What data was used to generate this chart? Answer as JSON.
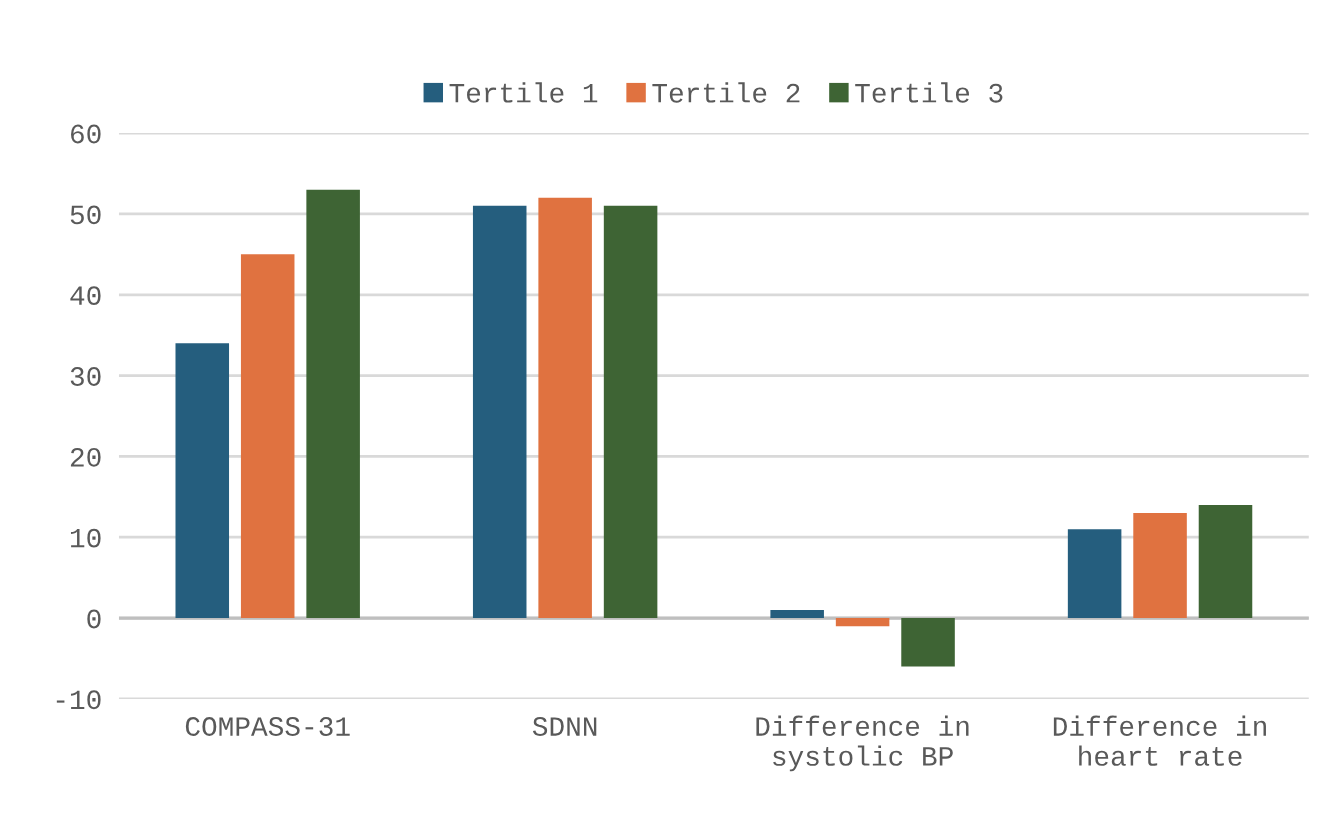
{
  "chart_data": {
    "type": "bar",
    "categories": [
      "COMPASS-31",
      "SDNN",
      "Difference in\nsystolic BP",
      "Difference in\nheart rate"
    ],
    "series": [
      {
        "name": "Tertile 1",
        "color": "#255e7e",
        "values": [
          34,
          51,
          1,
          11
        ]
      },
      {
        "name": "Tertile 2",
        "color": "#e07240",
        "values": [
          45,
          52,
          -1,
          13
        ]
      },
      {
        "name": "Tertile 3",
        "color": "#3e6434",
        "values": [
          53,
          51,
          -6,
          14
        ]
      }
    ],
    "ylim": [
      -10,
      60
    ],
    "yticks": [
      -10,
      0,
      10,
      20,
      30,
      40,
      50,
      60
    ],
    "grid": "y",
    "legend": "top"
  }
}
